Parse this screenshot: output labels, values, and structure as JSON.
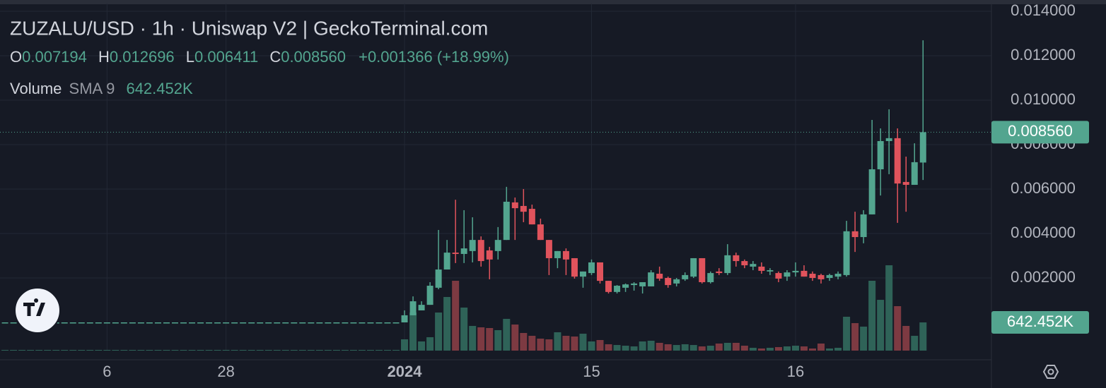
{
  "header": {
    "title": "ZUZALU/USD · 1h · Uniswap V2 | GeckoTerminal.com",
    "ohlc": [
      {
        "key": "O",
        "value": "0.007194"
      },
      {
        "key": "H",
        "value": "0.012696"
      },
      {
        "key": "L",
        "value": "0.006411"
      },
      {
        "key": "C",
        "value": "0.008560"
      }
    ],
    "change": "+0.001366 (+18.99%)",
    "volume": "Volume",
    "sma": "SMA 9",
    "sma_value": "642.452K"
  },
  "chart_data": {
    "type": "candlestick",
    "x": [
      -47,
      -46,
      -45,
      -44,
      -43,
      -42,
      -41,
      -40,
      -39,
      -38,
      -37,
      -36,
      -35,
      -34,
      -33,
      -32,
      -31,
      -30,
      -29,
      -28,
      -27,
      -26,
      -25,
      -24,
      -23,
      -22,
      -21,
      -20,
      -19,
      -18,
      -17,
      -16,
      -15,
      -14,
      -13,
      -12,
      -11,
      -10,
      -9,
      -8,
      -7,
      -6,
      -5,
      -4,
      -3,
      -2,
      -1,
      0,
      1,
      2,
      3,
      4,
      5,
      6,
      7,
      8,
      9,
      10,
      11,
      12,
      13,
      14,
      15,
      16,
      17,
      18,
      19,
      20,
      21,
      22,
      23,
      24,
      25,
      26,
      27,
      28,
      29,
      30,
      31,
      32,
      33,
      34,
      35,
      36,
      37,
      38,
      39,
      40,
      41,
      42,
      43,
      44,
      45,
      46,
      47,
      48,
      49,
      50,
      51,
      52,
      53,
      54,
      55,
      56,
      57,
      58,
      59,
      60,
      61
    ],
    "open": [
      0,
      0,
      0,
      0,
      0,
      0,
      0,
      0,
      0,
      0,
      0,
      0,
      0,
      0,
      0,
      0,
      0,
      0,
      0,
      0,
      0,
      0,
      0,
      0,
      0,
      0,
      0,
      0,
      0,
      0,
      0,
      0,
      0,
      0,
      0,
      0,
      0,
      0,
      0,
      0,
      0,
      0,
      0,
      0,
      0,
      0,
      0,
      0,
      0.00032,
      0.00054,
      0.00079,
      0.00156,
      0.00238,
      0.00314,
      0.00308,
      0.00321,
      0.00371,
      0.00324,
      0.00321,
      0.00371,
      0.0054,
      0.00524,
      0.00511,
      0.00441,
      0.00371,
      0.00289,
      0.00321,
      0.00289,
      0.00206,
      0.00222,
      0.0027,
      0.00187,
      0.00137,
      0.00156,
      0.00168,
      0.00162,
      0.00162,
      0.00219,
      0.002,
      0.00175,
      0.00194,
      0.00206,
      0.00289,
      0.00181,
      0.00229,
      0.00222,
      0.00302,
      0.00276,
      0.00251,
      0.00251,
      0.00229,
      0.00222,
      0.00206,
      0.00225,
      0.00232,
      0.00219,
      0.00213,
      0.002,
      0.00206,
      0.00213,
      0.0041,
      0.00384,
      0.00486,
      0.00689,
      0.00816,
      0.00829,
      0.00632,
      0.00619,
      0.007194
    ],
    "high": [
      0,
      0,
      0,
      0,
      0,
      0,
      0,
      0,
      0,
      0,
      0,
      0,
      0,
      0,
      0,
      0,
      0,
      0,
      0,
      0,
      0,
      0,
      0,
      0,
      0,
      0,
      0,
      0,
      0,
      0,
      0,
      0,
      0,
      0,
      0,
      0,
      0,
      0,
      0,
      0,
      0,
      0,
      0,
      0,
      0,
      0,
      0,
      0.00054,
      0.00117,
      0.00095,
      0.00181,
      0.00416,
      0.00371,
      0.00552,
      0.00505,
      0.00473,
      0.00387,
      0.0034,
      0.00429,
      0.0061,
      0.00562,
      0.006,
      0.0053,
      0.00467,
      0.00371,
      0.00321,
      0.00333,
      0.00289,
      0.00229,
      0.00283,
      0.0027,
      0.00187,
      0.00168,
      0.00175,
      0.00181,
      0.00181,
      0.00235,
      0.00251,
      0.00206,
      0.002,
      0.00225,
      0.00289,
      0.00289,
      0.00229,
      0.00244,
      0.00352,
      0.00314,
      0.00283,
      0.00276,
      0.0027,
      0.00244,
      0.00229,
      0.00235,
      0.0027,
      0.00257,
      0.00229,
      0.00219,
      0.00219,
      0.00229,
      0.00457,
      0.00498,
      0.00505,
      0.00911,
      0.00873,
      0.00959,
      0.00873,
      0.00746,
      0.00806,
      0.012696
    ],
    "low": [
      0,
      0,
      0,
      0,
      0,
      0,
      0,
      0,
      0,
      0,
      0,
      0,
      0,
      0,
      0,
      0,
      0,
      0,
      0,
      0,
      0,
      0,
      0,
      0,
      0,
      0,
      0,
      0,
      0,
      0,
      0,
      0,
      0,
      0,
      0,
      0,
      0,
      0,
      0,
      0,
      0,
      0,
      0,
      0,
      0,
      0,
      0,
      0,
      0.00032,
      0.00054,
      0.00079,
      0.00149,
      0.00238,
      0.00267,
      0.00267,
      0.0027,
      0.00251,
      0.00194,
      0.00283,
      0.00371,
      0.00371,
      0.00451,
      0.00441,
      0.00371,
      0.00213,
      0.00244,
      0.00213,
      0.00197,
      0.00156,
      0.00213,
      0.00175,
      0.0013,
      0.0013,
      0.00137,
      0.00143,
      0.0013,
      0.00162,
      0.00187,
      0.00156,
      0.00162,
      0.00187,
      0.002,
      0.00175,
      0.00175,
      0.00213,
      0.00213,
      0.00251,
      0.00244,
      0.00235,
      0.00219,
      0.00213,
      0.00181,
      0.00187,
      0.00206,
      0.00206,
      0.00187,
      0.00175,
      0.00187,
      0.00194,
      0.00206,
      0.00317,
      0.00356,
      0.00486,
      0.00571,
      0.00667,
      0.00448,
      0.00498,
      0.00619,
      0.006411
    ],
    "close": [
      0,
      0,
      0,
      0,
      0,
      0,
      0,
      0,
      0,
      0,
      0,
      0,
      0,
      0,
      0,
      0,
      0,
      0,
      0,
      0,
      0,
      0,
      0,
      0,
      0,
      0,
      0,
      0,
      0,
      0,
      0,
      0,
      0,
      0,
      0,
      0,
      0,
      0,
      0,
      0,
      0,
      0,
      0,
      0,
      0,
      0,
      0,
      0.00032,
      0.00095,
      0.00079,
      0.00165,
      0.00238,
      0.00314,
      0.00308,
      0.00333,
      0.00371,
      0.00276,
      0.00283,
      0.00371,
      0.00543,
      0.00514,
      0.00498,
      0.00441,
      0.00371,
      0.00289,
      0.00321,
      0.00283,
      0.00206,
      0.00229,
      0.0027,
      0.00187,
      0.00137,
      0.00165,
      0.00171,
      0.00175,
      0.00181,
      0.00225,
      0.00197,
      0.00168,
      0.00194,
      0.00213,
      0.00289,
      0.00181,
      0.00222,
      0.00222,
      0.00302,
      0.00276,
      0.00257,
      0.00263,
      0.00232,
      0.00235,
      0.00197,
      0.00225,
      0.00232,
      0.00206,
      0.002,
      0.00194,
      0.00213,
      0.00219,
      0.0041,
      0.00384,
      0.00486,
      0.00689,
      0.00816,
      0.00829,
      0.00625,
      0.00619,
      0.00721,
      0.00856
    ],
    "volume": [
      16000,
      16000,
      16000,
      16000,
      16000,
      16000,
      16000,
      16000,
      16000,
      16000,
      16000,
      16000,
      16000,
      16000,
      16000,
      16000,
      16000,
      16000,
      16000,
      16000,
      16000,
      16000,
      16000,
      16000,
      16000,
      16000,
      16000,
      16000,
      16000,
      16000,
      16000,
      16000,
      16000,
      16000,
      16000,
      16000,
      16000,
      16000,
      16000,
      16000,
      16000,
      16000,
      16000,
      16000,
      16000,
      16000,
      16000,
      257000,
      867000,
      209000,
      305000,
      867000,
      1221000,
      1590000,
      980000,
      562000,
      530000,
      514000,
      466000,
      723000,
      594000,
      402000,
      337000,
      273000,
      257000,
      418000,
      337000,
      321000,
      385000,
      209000,
      241000,
      145000,
      128000,
      112000,
      96000,
      209000,
      225000,
      177000,
      145000,
      128000,
      145000,
      128000,
      96000,
      112000,
      161000,
      177000,
      177000,
      112000,
      64000,
      48000,
      64000,
      80000,
      96000,
      112000,
      96000,
      48000,
      161000,
      48000,
      64000,
      771000,
      626000,
      546000,
      1590000,
      1156000,
      1943000,
      1012000,
      562000,
      337000,
      642452
    ],
    "colors": {
      "up": "#53a58f",
      "down": "#e0535c",
      "up_volume": "#2f6358",
      "down_volume": "#7d3a42"
    },
    "xlim": [
      -47.59,
      68.88
    ],
    "xticks": [
      {
        "value": -35,
        "label": "6"
      },
      {
        "value": -21,
        "label": "28"
      },
      {
        "value": 0,
        "label": "2024",
        "bold": true
      },
      {
        "value": 22,
        "label": "15"
      },
      {
        "value": 46,
        "label": "16"
      }
    ],
    "ylim": [
      -0.00127,
      0.01435
    ],
    "yticks": [
      {
        "value": 0.002,
        "label": "0.002000"
      },
      {
        "value": 0.004,
        "label": "0.004000"
      },
      {
        "value": 0.006,
        "label": "0.006000"
      },
      {
        "value": 0.008,
        "label": "0.008000"
      },
      {
        "value": 0.01,
        "label": "0.010000"
      },
      {
        "value": 0.012,
        "label": "0.012000"
      },
      {
        "value": 0.014,
        "label": "0.014000"
      }
    ],
    "y2lim": [
      0,
      7902000
    ],
    "price_line": {
      "value": 0.00856,
      "label": "0.008560"
    },
    "volume_line": {
      "value": 642452,
      "label": "642.452K"
    },
    "grid": true
  }
}
